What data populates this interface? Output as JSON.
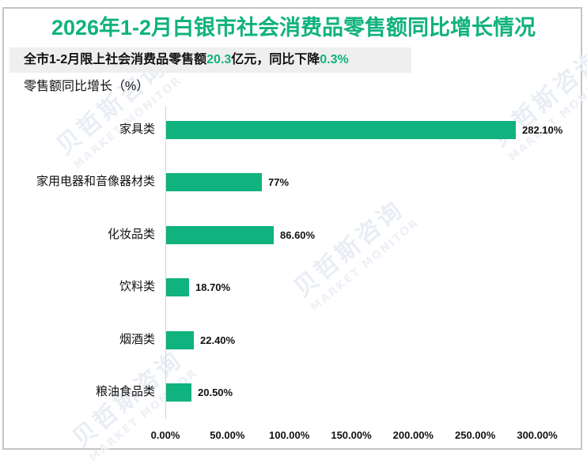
{
  "title": "2026年1-2月白银市社会消费品零售额同比增长情况",
  "subtitle": {
    "prefix": "全市1-2月限上社会消费品零售额",
    "amount": "20.3",
    "middle": "亿元，同比下降",
    "change": "0.3%"
  },
  "unit_label": "零售额同比增长（%）",
  "colors": {
    "accent": "#10b27e",
    "bar": "#10b27e",
    "text": "#111111",
    "subtitle_bg": "#efefef",
    "border": "#c4c4c4"
  },
  "watermark": {
    "cn": "贝哲斯咨询",
    "en": "MARKET MONITOR"
  },
  "chart_data": {
    "type": "bar",
    "orientation": "horizontal",
    "title": "2026年1-2月白银市社会消费品零售额同比增长情况",
    "subtitle": "全市1-2月限上社会消费品零售额20.3亿元，同比下降0.3%",
    "xlabel": "",
    "ylabel": "零售额同比增长（%）",
    "categories": [
      "家具类",
      "家用电器和音像器材类",
      "化妆品类",
      "饮料类",
      "烟酒类",
      "粮油食品类"
    ],
    "values": [
      282.1,
      77,
      86.6,
      18.7,
      22.4,
      20.5
    ],
    "value_labels": [
      "282.10%",
      "77%",
      "86.60%",
      "18.70%",
      "22.40%",
      "20.50%"
    ],
    "xlim": [
      0,
      300
    ],
    "x_ticks": [
      "0.00%",
      "50.00%",
      "100.00%",
      "150.00%",
      "200.00%",
      "250.00%",
      "300.00%"
    ],
    "grid": false,
    "legend": null
  }
}
